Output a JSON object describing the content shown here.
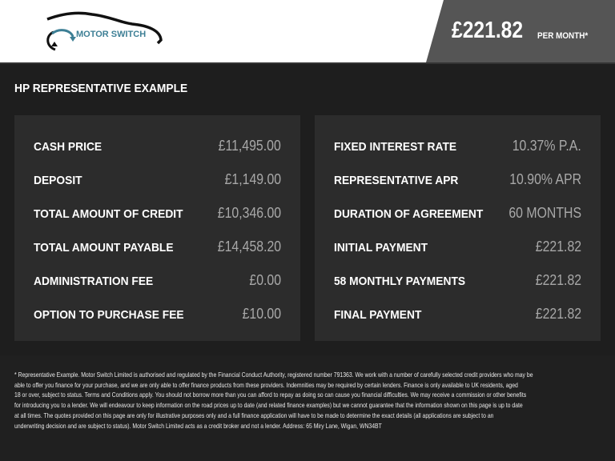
{
  "header": {
    "logo_name": "MOTOR SWITCH",
    "logo_tagline": "YOUR NEW MOTOR IS JUST A SWITCH AWAY",
    "price": "£221.82",
    "price_suffix": "PER MONTH*"
  },
  "title": "HP REPRESENTATIVE EXAMPLE",
  "left": [
    {
      "label": "CASH PRICE",
      "value": "£11,495.00"
    },
    {
      "label": "DEPOSIT",
      "value": "£1,149.00"
    },
    {
      "label": "TOTAL AMOUNT OF CREDIT",
      "value": "£10,346.00"
    },
    {
      "label": "TOTAL AMOUNT PAYABLE",
      "value": "£14,458.20"
    },
    {
      "label": "ADMINISTRATION FEE",
      "value": "£0.00"
    },
    {
      "label": "OPTION TO PURCHASE FEE",
      "value": "£10.00"
    }
  ],
  "right": [
    {
      "label": "FIXED INTEREST RATE",
      "value": "10.37% P.A."
    },
    {
      "label": "REPRESENTATIVE APR",
      "value": "10.90% APR"
    },
    {
      "label": "DURATION OF AGREEMENT",
      "value": "60 MONTHS"
    },
    {
      "label": "INITIAL PAYMENT",
      "value": "£221.82"
    },
    {
      "label": "58 MONTHLY PAYMENTS",
      "value": "£221.82"
    },
    {
      "label": "FINAL PAYMENT",
      "value": "£221.82"
    }
  ],
  "disclaimer": [
    "* Representative Example. Motor Switch Limited  is authorised and regulated by the Financial Conduct Authority, registered number 791363. We work with a number of carefully selected credit providers who may be",
    "able to offer you finance for your purchase, and we are only able to offer finance products from these providers. Indemnities may be required by certain lenders. Finance is only available to UK residents, aged",
    "18 or over, subject to status. Terms and Conditions apply. You should not borrow more than you can afford to repay as doing so can cause you financial difficulties. We may receive a commission or other benefits",
    "for introducing you to a lender. We will endeavour to keep information on the road prices up to date (and related finance examples) but we cannot guarantee that the information shown on this page is up to date",
    "at all times. The quotes provided on this page are only for illustrative purposes only and a full finance application will have to be made to determine the exact details (all applications are subject to an",
    "underwriting decision and are subject to status). Motor Switch Limited  acts as a credit broker and not a lender. Address: 65 Miry Lane, Wigan, WN34BT"
  ]
}
